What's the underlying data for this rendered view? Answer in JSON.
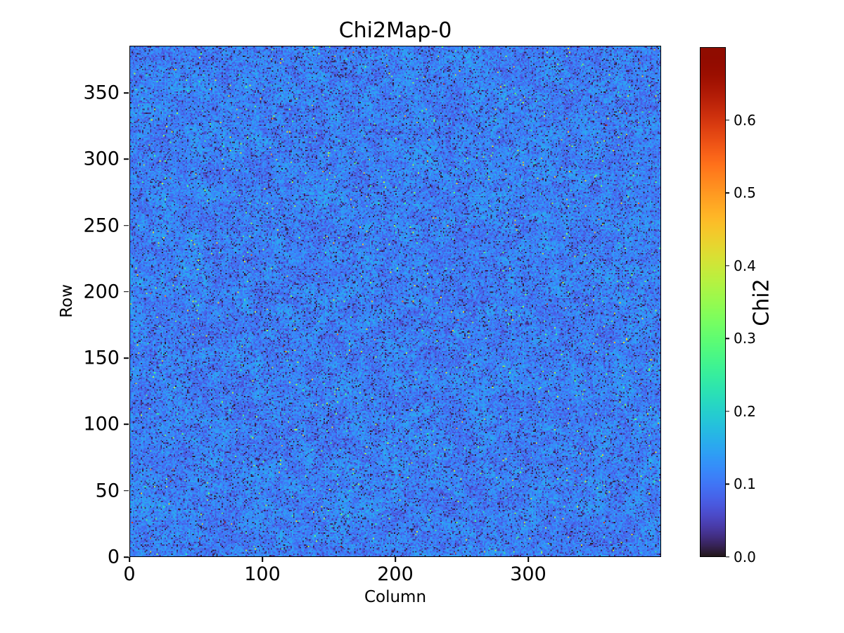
{
  "title": "Chi2Map-0",
  "axes": {
    "xlabel": "Column",
    "ylabel": "Row",
    "x_tick_labels": [
      "0",
      "100",
      "200",
      "300"
    ],
    "x_tick_values": [
      0,
      100,
      200,
      300
    ],
    "y_tick_labels": [
      "0",
      "50",
      "100",
      "150",
      "200",
      "250",
      "300",
      "350"
    ],
    "y_tick_values": [
      0,
      50,
      100,
      150,
      200,
      250,
      300,
      350
    ],
    "xlim": [
      0,
      400
    ],
    "ylim": [
      0,
      385.5
    ]
  },
  "colorbar": {
    "label": "Chi2",
    "tick_labels": [
      "0.0",
      "0.1",
      "0.2",
      "0.3",
      "0.4",
      "0.5",
      "0.6"
    ],
    "tick_values": [
      0.0,
      0.1,
      0.2,
      0.3,
      0.4,
      0.5,
      0.6
    ],
    "vmin": 0.0,
    "vmax": 0.7,
    "colormap": "turbo",
    "top_color": "#7a0403",
    "bottom_color": "#30123b"
  },
  "chart_data": {
    "type": "heatmap",
    "title": "Chi2Map-0",
    "xlabel": "Column",
    "ylabel": "Row",
    "colorbar_label": "Chi2",
    "grid_shape": [
      385,
      400
    ],
    "xlim": [
      0,
      400
    ],
    "ylim": [
      0,
      385.5
    ],
    "value_range": [
      0.0,
      0.7
    ],
    "colormap": "turbo",
    "x_ticks": [
      0,
      100,
      200,
      300
    ],
    "y_ticks": [
      0,
      50,
      100,
      150,
      200,
      250,
      300,
      350
    ],
    "colorbar_ticks": [
      0.0,
      0.1,
      0.2,
      0.3,
      0.4,
      0.5,
      0.6
    ],
    "grid": false,
    "distribution": {
      "description": "Per-pixel chi2 noise map: baseline blue values ~0.08-0.15, ~14% near-zero dark-purple pixels, ~0.55% bright cyan/green/yellow outliers 0.22-0.46, rare orange/red hot pixels 0.48-0.68",
      "baseline_min": 0.08,
      "baseline_max": 0.15,
      "mottle_amplitude": 0.02,
      "dark_fraction": 0.14,
      "dark_min": 0.003,
      "dark_max": 0.073,
      "bright_fraction": 0.0055,
      "bright_min": 0.22,
      "bright_max": 0.46,
      "hot_fraction": 0.0004,
      "hot_min": 0.48,
      "hot_max": 0.68,
      "seed": 1337
    }
  }
}
